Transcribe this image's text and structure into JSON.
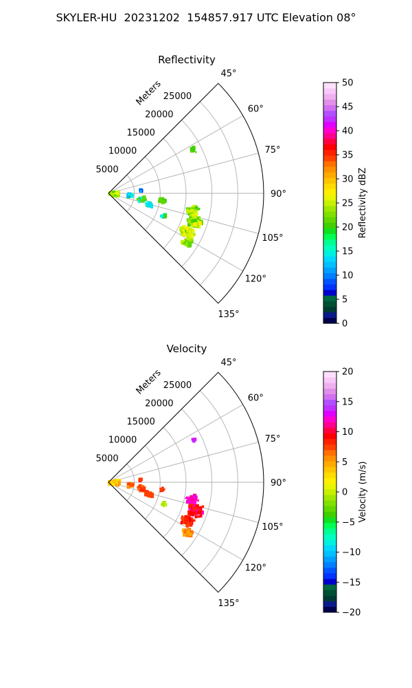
{
  "figure": {
    "title": "SKYLER-HU  20231202  154857.917 UTC Elevation 08°"
  },
  "chart_data": [
    {
      "type": "heatmap",
      "subtype": "polar-sector",
      "title": "Reflectivity",
      "radial_label": "Meters",
      "radial_ticks": [
        "5000",
        "10000",
        "15000",
        "20000",
        "25000"
      ],
      "radial_tick_values": [
        5000,
        10000,
        15000,
        20000,
        25000
      ],
      "radial_max": 30000,
      "angle_ticks": [
        "45°",
        "60°",
        "75°",
        "90°",
        "105°",
        "120°",
        "135°"
      ],
      "angle_tick_values": [
        45,
        60,
        75,
        90,
        105,
        120,
        135
      ],
      "angle_range": [
        45,
        135
      ],
      "grid": true,
      "colorbar": {
        "label": "Reflectivity dBZ",
        "min": 0,
        "max": 50,
        "ticks": [
          "0",
          "5",
          "10",
          "15",
          "20",
          "25",
          "30",
          "35",
          "40",
          "45",
          "50"
        ],
        "colors": [
          "#00004c",
          "#0a1a8a",
          "#003b33",
          "#005033",
          "#006644",
          "#0000cd",
          "#0033ff",
          "#0055ff",
          "#0080ff",
          "#00a0ff",
          "#00c0ff",
          "#00d8ff",
          "#00f0e0",
          "#00ffc0",
          "#00ff90",
          "#00ff55",
          "#10e020",
          "#40d000",
          "#60d800",
          "#80e000",
          "#a0e800",
          "#c8f000",
          "#e8f500",
          "#ffee00",
          "#ffdc00",
          "#ffc400",
          "#ffaa00",
          "#ff9000",
          "#ff7000",
          "#ff4000",
          "#ff2000",
          "#ff0000",
          "#ff0040",
          "#ff0090",
          "#ff00d0",
          "#e000ff",
          "#c030ff",
          "#b050ff",
          "#d070f0",
          "#e090e8",
          "#f0b0f0",
          "#f8c8f8",
          "#fce0fc"
        ]
      },
      "echo_clusters": [
        {
          "azimuth": 92,
          "range": 1200,
          "spread_az": 18,
          "spread_r": 1100,
          "count": 120,
          "colors": [
            "#a0e800",
            "#c8f000",
            "#60d800",
            "#40d000",
            "#e8f500"
          ]
        },
        {
          "azimuth": 96,
          "range": 4200,
          "spread_az": 6,
          "spread_r": 700,
          "count": 22,
          "colors": [
            "#00c0ff",
            "#00f0e0",
            "#40d000",
            "#0033ff"
          ]
        },
        {
          "azimuth": 100,
          "range": 6500,
          "spread_az": 5,
          "spread_r": 900,
          "count": 28,
          "colors": [
            "#60d800",
            "#00f0e0",
            "#40d000"
          ]
        },
        {
          "azimuth": 106,
          "range": 8200,
          "spread_az": 4,
          "spread_r": 1000,
          "count": 24,
          "colors": [
            "#00f0e0",
            "#60d800",
            "#00d8ff"
          ]
        },
        {
          "azimuth": 98,
          "range": 10500,
          "spread_az": 4,
          "spread_r": 800,
          "count": 14,
          "colors": [
            "#40d000",
            "#60d800"
          ]
        },
        {
          "azimuth": 102,
          "range": 16500,
          "spread_az": 4,
          "spread_r": 1400,
          "count": 70,
          "colors": [
            "#60d800",
            "#a0e800",
            "#c8f000",
            "#40d000",
            "#e8f500"
          ]
        },
        {
          "azimuth": 108,
          "range": 17500,
          "spread_az": 5,
          "spread_r": 1800,
          "count": 110,
          "colors": [
            "#60d800",
            "#a0e800",
            "#c8f000",
            "#e8f500",
            "#ffee00",
            "#40d000"
          ]
        },
        {
          "azimuth": 116,
          "range": 17000,
          "spread_az": 4,
          "spread_r": 1600,
          "count": 90,
          "colors": [
            "#a0e800",
            "#c8f000",
            "#e8f500",
            "#ffee00",
            "#60d800"
          ]
        },
        {
          "azimuth": 122,
          "range": 18000,
          "spread_az": 3,
          "spread_r": 1400,
          "count": 50,
          "colors": [
            "#60d800",
            "#a0e800",
            "#c8f000",
            "#40d000"
          ]
        },
        {
          "azimuth": 63,
          "range": 18500,
          "spread_az": 2,
          "spread_r": 500,
          "count": 8,
          "colors": [
            "#40d000",
            "#60d800"
          ]
        },
        {
          "azimuth": 85,
          "range": 6200,
          "spread_az": 2,
          "spread_r": 400,
          "count": 6,
          "colors": [
            "#0033ff",
            "#00c0ff"
          ]
        },
        {
          "azimuth": 112,
          "range": 11500,
          "spread_az": 3,
          "spread_r": 800,
          "count": 10,
          "colors": [
            "#40d000",
            "#00f0e0"
          ]
        }
      ]
    },
    {
      "type": "heatmap",
      "subtype": "polar-sector",
      "title": "Velocity",
      "radial_label": "Meters",
      "radial_ticks": [
        "5000",
        "10000",
        "15000",
        "20000",
        "25000"
      ],
      "radial_tick_values": [
        5000,
        10000,
        15000,
        20000,
        25000
      ],
      "radial_max": 30000,
      "angle_ticks": [
        "45°",
        "60°",
        "75°",
        "90°",
        "105°",
        "120°",
        "135°"
      ],
      "angle_tick_values": [
        45,
        60,
        75,
        90,
        105,
        120,
        135
      ],
      "angle_range": [
        45,
        135
      ],
      "grid": true,
      "colorbar": {
        "label": "Velocity (m/s)",
        "min": -20,
        "max": 20,
        "ticks": [
          "−20",
          "−15",
          "−10",
          "−5",
          "0",
          "5",
          "10",
          "15",
          "20"
        ],
        "colors": [
          "#00004c",
          "#0a1a8a",
          "#003b33",
          "#005033",
          "#006644",
          "#0000cd",
          "#0033ff",
          "#0055ff",
          "#0080ff",
          "#00a0ff",
          "#00c0ff",
          "#00d8ff",
          "#00f0e0",
          "#00ffc0",
          "#00ff90",
          "#00ff55",
          "#10e020",
          "#40d000",
          "#60d800",
          "#80e000",
          "#a0e800",
          "#c8f000",
          "#e8f500",
          "#ffee00",
          "#ffdc00",
          "#ffc400",
          "#ffaa00",
          "#ff9000",
          "#ff7000",
          "#ff4000",
          "#ff2000",
          "#ff0000",
          "#ff0040",
          "#ff0090",
          "#ff00d0",
          "#e000ff",
          "#c030ff",
          "#b050ff",
          "#d070f0",
          "#e090e8",
          "#f0b0f0",
          "#f8c8f8",
          "#fce0fc"
        ]
      },
      "echo_clusters": [
        {
          "azimuth": 92,
          "range": 1200,
          "spread_az": 18,
          "spread_r": 1100,
          "count": 120,
          "colors": [
            "#ffee00",
            "#ffdc00",
            "#ffc400",
            "#ffaa00",
            "#ff9000"
          ]
        },
        {
          "azimuth": 96,
          "range": 4200,
          "spread_az": 6,
          "spread_r": 700,
          "count": 22,
          "colors": [
            "#ff7000",
            "#ff4000",
            "#ff9000"
          ]
        },
        {
          "azimuth": 100,
          "range": 6500,
          "spread_az": 5,
          "spread_r": 900,
          "count": 28,
          "colors": [
            "#ff7000",
            "#ff4000",
            "#ff2000"
          ]
        },
        {
          "azimuth": 106,
          "range": 8200,
          "spread_az": 4,
          "spread_r": 1000,
          "count": 24,
          "colors": [
            "#ff4000",
            "#ff2000",
            "#ff7000"
          ]
        },
        {
          "azimuth": 98,
          "range": 10500,
          "spread_az": 4,
          "spread_r": 800,
          "count": 14,
          "colors": [
            "#ff4000",
            "#ff2000"
          ]
        },
        {
          "azimuth": 102,
          "range": 16500,
          "spread_az": 4,
          "spread_r": 1400,
          "count": 70,
          "colors": [
            "#ff00d0",
            "#e000ff",
            "#ff0090",
            "#ff00ff"
          ]
        },
        {
          "azimuth": 108,
          "range": 17500,
          "spread_az": 5,
          "spread_r": 1800,
          "count": 110,
          "colors": [
            "#ff0000",
            "#ff2000",
            "#ff0040",
            "#ff00d0"
          ]
        },
        {
          "azimuth": 116,
          "range": 17000,
          "spread_az": 4,
          "spread_r": 1600,
          "count": 90,
          "colors": [
            "#ff2000",
            "#ff0000",
            "#ff4000"
          ]
        },
        {
          "azimuth": 122,
          "range": 18000,
          "spread_az": 3,
          "spread_r": 1400,
          "count": 50,
          "colors": [
            "#ff9000",
            "#ff7000",
            "#ffaa00"
          ]
        },
        {
          "azimuth": 63,
          "range": 18500,
          "spread_az": 2,
          "spread_r": 500,
          "count": 8,
          "colors": [
            "#c030ff",
            "#e000ff"
          ]
        },
        {
          "azimuth": 85,
          "range": 6200,
          "spread_az": 2,
          "spread_r": 400,
          "count": 6,
          "colors": [
            "#ff2000",
            "#ff4000"
          ]
        },
        {
          "azimuth": 112,
          "range": 11500,
          "spread_az": 3,
          "spread_r": 800,
          "count": 10,
          "colors": [
            "#c8f000",
            "#a0e800"
          ]
        }
      ]
    }
  ]
}
